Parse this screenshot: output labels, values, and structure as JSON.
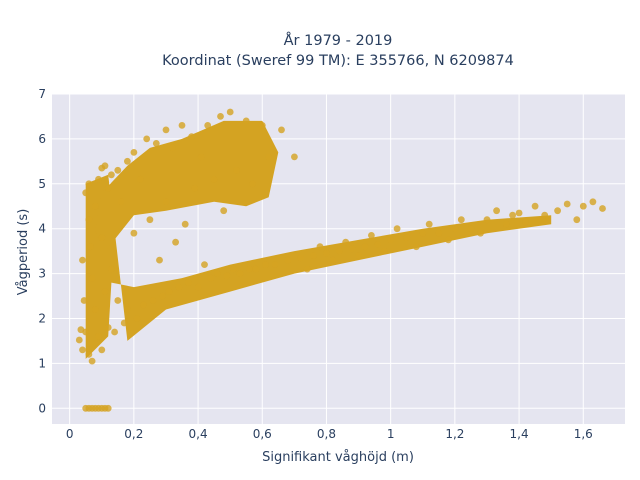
{
  "chart_data": {
    "type": "scatter",
    "title_line1": "År 1979 - 2019",
    "title_line2": "Koordinat (Sweref 99 TM): E 355766, N 6209874",
    "xlabel": "Signifikant våghöjd (m)",
    "ylabel": "Vågperiod (s)",
    "xlim": [
      -0.055,
      1.73
    ],
    "ylim": [
      -0.35,
      7.0
    ],
    "xticks": [
      0,
      0.2,
      0.4,
      0.6,
      0.8,
      1.0,
      1.2,
      1.4,
      1.6
    ],
    "xtick_labels": [
      "0",
      "0,2",
      "0,4",
      "0,6",
      "0,8",
      "1",
      "1,2",
      "1,4",
      "1,6"
    ],
    "yticks": [
      0,
      1,
      2,
      3,
      4,
      5,
      6,
      7
    ],
    "ytick_labels": [
      "0",
      "1",
      "2",
      "3",
      "4",
      "5",
      "6",
      "7"
    ],
    "grid": true,
    "marker_color": "#d4a322",
    "plot_background": "#e5e5f0",
    "points": [
      [
        0.03,
        1.52
      ],
      [
        0.035,
        1.75
      ],
      [
        0.04,
        1.3
      ],
      [
        0.04,
        3.3
      ],
      [
        0.045,
        2.4
      ],
      [
        0.05,
        4.8
      ],
      [
        0.05,
        1.7
      ],
      [
        0.05,
        0.0
      ],
      [
        0.06,
        0.0
      ],
      [
        0.07,
        0.0
      ],
      [
        0.08,
        0.0
      ],
      [
        0.09,
        0.0
      ],
      [
        0.1,
        0.0
      ],
      [
        0.11,
        0.0
      ],
      [
        0.12,
        0.0
      ],
      [
        0.06,
        5.0
      ],
      [
        0.06,
        4.2
      ],
      [
        0.06,
        1.2
      ],
      [
        0.065,
        3.6
      ],
      [
        0.07,
        2.9
      ],
      [
        0.07,
        1.05
      ],
      [
        0.08,
        4.5
      ],
      [
        0.08,
        2.2
      ],
      [
        0.09,
        5.1
      ],
      [
        0.09,
        1.6
      ],
      [
        0.1,
        3.8
      ],
      [
        0.1,
        1.3
      ],
      [
        0.1,
        5.35
      ],
      [
        0.11,
        5.4
      ],
      [
        0.11,
        2.6
      ],
      [
        0.12,
        4.9
      ],
      [
        0.12,
        1.8
      ],
      [
        0.13,
        5.2
      ],
      [
        0.13,
        3.1
      ],
      [
        0.14,
        1.7
      ],
      [
        0.15,
        5.3
      ],
      [
        0.15,
        2.4
      ],
      [
        0.16,
        4.6
      ],
      [
        0.17,
        1.9
      ],
      [
        0.18,
        5.5
      ],
      [
        0.18,
        2.2
      ],
      [
        0.2,
        5.7
      ],
      [
        0.2,
        3.9
      ],
      [
        0.21,
        2.0
      ],
      [
        0.22,
        5.1
      ],
      [
        0.23,
        2.3
      ],
      [
        0.24,
        6.0
      ],
      [
        0.25,
        4.2
      ],
      [
        0.26,
        2.4
      ],
      [
        0.27,
        5.9
      ],
      [
        0.28,
        3.3
      ],
      [
        0.29,
        2.5
      ],
      [
        0.3,
        6.2
      ],
      [
        0.3,
        4.6
      ],
      [
        0.31,
        2.6
      ],
      [
        0.32,
        5.8
      ],
      [
        0.33,
        3.7
      ],
      [
        0.34,
        2.7
      ],
      [
        0.35,
        6.3
      ],
      [
        0.36,
        4.1
      ],
      [
        0.37,
        2.8
      ],
      [
        0.38,
        6.05
      ],
      [
        0.39,
        4.9
      ],
      [
        0.4,
        2.7
      ],
      [
        0.41,
        5.6
      ],
      [
        0.42,
        3.2
      ],
      [
        0.43,
        6.3
      ],
      [
        0.44,
        2.9
      ],
      [
        0.45,
        5.1
      ],
      [
        0.46,
        3.0
      ],
      [
        0.47,
        6.5
      ],
      [
        0.48,
        4.4
      ],
      [
        0.49,
        2.95
      ],
      [
        0.5,
        6.6
      ],
      [
        0.51,
        3.1
      ],
      [
        0.52,
        5.3
      ],
      [
        0.53,
        3.0
      ],
      [
        0.55,
        6.4
      ],
      [
        0.56,
        3.1
      ],
      [
        0.57,
        5.0
      ],
      [
        0.58,
        3.1
      ],
      [
        0.6,
        6.3
      ],
      [
        0.61,
        3.2
      ],
      [
        0.62,
        5.6
      ],
      [
        0.64,
        3.2
      ],
      [
        0.66,
        6.2
      ],
      [
        0.68,
        3.3
      ],
      [
        0.7,
        5.6
      ],
      [
        0.72,
        3.35
      ],
      [
        0.74,
        3.1
      ],
      [
        0.76,
        3.4
      ],
      [
        0.78,
        3.6
      ],
      [
        0.8,
        3.45
      ],
      [
        0.82,
        3.3
      ],
      [
        0.84,
        3.5
      ],
      [
        0.86,
        3.7
      ],
      [
        0.88,
        3.55
      ],
      [
        0.9,
        3.4
      ],
      [
        0.92,
        3.6
      ],
      [
        0.94,
        3.85
      ],
      [
        0.96,
        3.65
      ],
      [
        0.98,
        3.5
      ],
      [
        1.0,
        3.75
      ],
      [
        1.02,
        4.0
      ],
      [
        1.05,
        3.8
      ],
      [
        1.08,
        3.6
      ],
      [
        1.1,
        3.9
      ],
      [
        1.12,
        4.1
      ],
      [
        1.15,
        3.9
      ],
      [
        1.18,
        3.75
      ],
      [
        1.2,
        4.0
      ],
      [
        1.22,
        4.2
      ],
      [
        1.25,
        4.0
      ],
      [
        1.28,
        3.9
      ],
      [
        1.3,
        4.2
      ],
      [
        1.33,
        4.4
      ],
      [
        1.36,
        4.1
      ],
      [
        1.38,
        4.3
      ],
      [
        1.4,
        4.35
      ],
      [
        1.42,
        4.15
      ],
      [
        1.45,
        4.5
      ],
      [
        1.48,
        4.3
      ],
      [
        1.52,
        4.4
      ],
      [
        1.55,
        4.55
      ],
      [
        1.58,
        4.2
      ],
      [
        1.6,
        4.5
      ],
      [
        1.63,
        4.6
      ],
      [
        1.66,
        4.45
      ]
    ]
  }
}
